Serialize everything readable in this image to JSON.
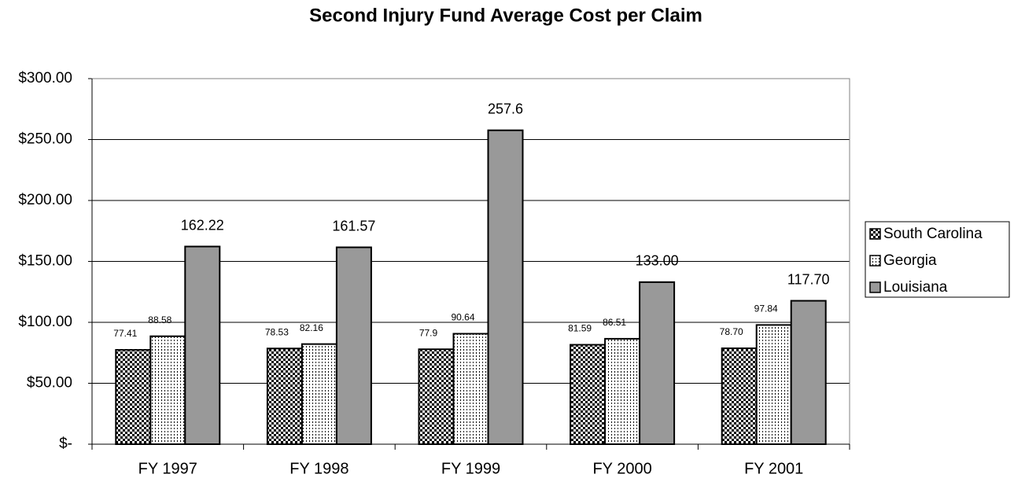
{
  "chart_data": {
    "type": "bar",
    "title": "Second Injury Fund Average Cost per Claim",
    "categories": [
      "FY 1997",
      "FY 1998",
      "FY 1999",
      "FY 2000",
      "FY 2001"
    ],
    "series": [
      {
        "name": "South Carolina",
        "color": "#000000",
        "pattern": "checker",
        "values": [
          77.41,
          78.53,
          77.9,
          81.59,
          78.7
        ],
        "value_labels": [
          "77.41",
          "78.53",
          "77.9",
          "81.59",
          "78.70"
        ]
      },
      {
        "name": "Georgia",
        "color": "#000000",
        "pattern": "dots",
        "values": [
          88.58,
          82.16,
          90.64,
          86.51,
          97.84
        ],
        "value_labels": [
          "88.58",
          "82.16",
          "90.64",
          "86.51",
          "97.84"
        ]
      },
      {
        "name": "Louisiana",
        "color": "#999999",
        "pattern": "solid",
        "values": [
          162.22,
          161.57,
          257.6,
          133.0,
          117.7
        ],
        "value_labels": [
          "162.22",
          "161.57",
          "257.6",
          "133.00",
          "117.70"
        ]
      }
    ],
    "ylim": [
      0,
      300
    ],
    "yticks": [
      {
        "value": 0,
        "label": "$-"
      },
      {
        "value": 50,
        "label": "$50.00"
      },
      {
        "value": 100,
        "label": "$100.00"
      },
      {
        "value": 150,
        "label": "$150.00"
      },
      {
        "value": 200,
        "label": "$200.00"
      },
      {
        "value": 250,
        "label": "$250.00"
      },
      {
        "value": 300,
        "label": "$300.00"
      }
    ],
    "grid": true,
    "legend": "right"
  }
}
